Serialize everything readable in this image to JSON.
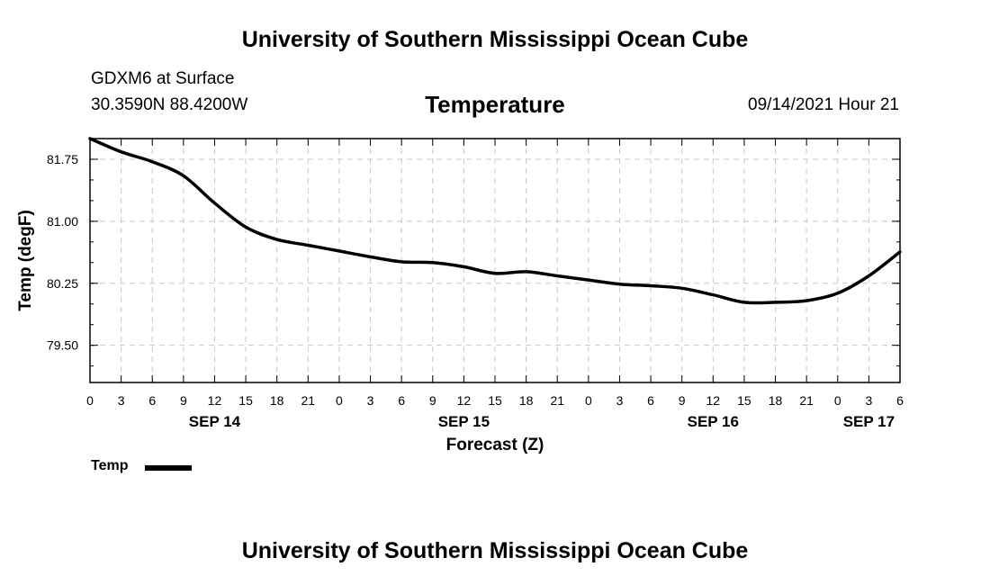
{
  "header": {
    "institution": "University of Southern Mississippi Ocean Cube",
    "station": "GDXM6 at Surface",
    "location": "30.3590N  88.4200W",
    "chart_title": "Temperature",
    "datetime": "09/14/2021 Hour 21"
  },
  "footer": {
    "institution": "University of Southern Mississippi Ocean Cube"
  },
  "legend": {
    "label": "Temp"
  },
  "chart_data": {
    "type": "line",
    "title": "Temperature",
    "xlabel": "Forecast (Z)",
    "ylabel": "Temp (degF)",
    "x_unit": "hours from SEP 14 00Z",
    "xlim": [
      0,
      78
    ],
    "ylim": [
      79.05,
      82.0
    ],
    "y_ticks": [
      79.5,
      80.25,
      81.0,
      81.75
    ],
    "y_tick_labels": [
      "79.50",
      "80.25",
      "81.00",
      "81.75"
    ],
    "x_ticks": [
      0,
      3,
      6,
      9,
      12,
      15,
      18,
      21,
      24,
      27,
      30,
      33,
      36,
      39,
      42,
      45,
      48,
      51,
      54,
      57,
      60,
      63,
      66,
      69,
      72,
      75,
      78
    ],
    "x_tick_labels": [
      "0",
      "3",
      "6",
      "9",
      "12",
      "15",
      "18",
      "21",
      "0",
      "3",
      "6",
      "9",
      "12",
      "15",
      "18",
      "21",
      "0",
      "3",
      "6",
      "9",
      "12",
      "15",
      "18",
      "21",
      "0",
      "3",
      "6"
    ],
    "day_labels": [
      {
        "x": 12,
        "label": "SEP 14"
      },
      {
        "x": 36,
        "label": "SEP 15"
      },
      {
        "x": 60,
        "label": "SEP 16"
      },
      {
        "x": 75,
        "label": "SEP 17"
      }
    ],
    "grid": true,
    "color": "#000000",
    "series": [
      {
        "name": "Temp",
        "x": [
          0,
          3,
          6,
          9,
          12,
          15,
          18,
          21,
          24,
          27,
          30,
          33,
          36,
          39,
          42,
          45,
          48,
          51,
          54,
          57,
          60,
          63,
          66,
          69,
          72,
          75,
          78
        ],
        "values": [
          82.0,
          81.84,
          81.72,
          81.55,
          81.22,
          80.93,
          80.78,
          80.71,
          80.64,
          80.57,
          80.51,
          80.5,
          80.45,
          80.37,
          80.39,
          80.34,
          80.29,
          80.24,
          80.22,
          80.19,
          80.11,
          80.02,
          80.02,
          80.04,
          80.13,
          80.34,
          80.63
        ]
      }
    ]
  }
}
